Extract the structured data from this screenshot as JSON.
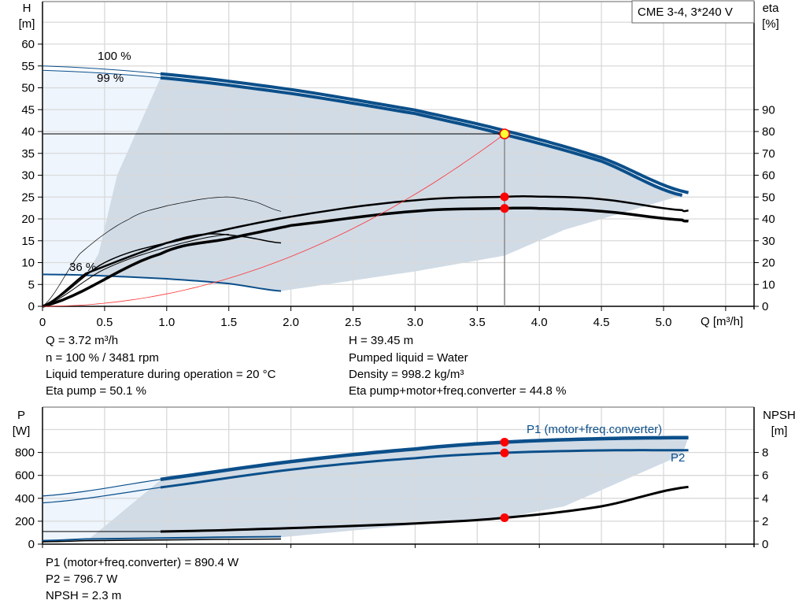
{
  "chart_data": [
    {
      "type": "line",
      "title": "",
      "legend_box": "CME 3-4, 3*240 V",
      "x_axis": {
        "label": "Q [m³/h]",
        "range": [
          0,
          5.7
        ],
        "ticks": [
          "0",
          "0.5",
          "1.0",
          "1.5",
          "2.0",
          "2.5",
          "3.0",
          "3.5",
          "4.0",
          "4.5",
          "5.0"
        ],
        "grid": true
      },
      "y_axis_left": {
        "label_top": "H",
        "label_unit": "[m]",
        "range": [
          0,
          70
        ],
        "ticks": [
          "0",
          "5",
          "10",
          "15",
          "20",
          "25",
          "30",
          "35",
          "40",
          "45",
          "50",
          "55",
          "60"
        ]
      },
      "y_axis_right": {
        "label_top": "eta",
        "label_unit": "[%]",
        "range": [
          0,
          140
        ],
        "ticks": [
          "0",
          "10",
          "20",
          "30",
          "40",
          "50",
          "60",
          "70",
          "80",
          "90"
        ]
      },
      "curve_labels": {
        "max_speed": "100 %",
        "near_max_speed": "99 %",
        "min_speed": "36 %"
      },
      "series": [
        {
          "kind": "H",
          "label": "100 %",
          "x": [
            0,
            0.95,
            2,
            3,
            3.72,
            4.5,
            5.2
          ],
          "y": [
            55,
            53.2,
            49.6,
            44.9,
            40.2,
            34,
            26
          ]
        },
        {
          "kind": "H",
          "label": "99 %",
          "x": [
            0,
            0.95,
            2,
            3,
            3.72,
            4.5,
            5.15
          ],
          "y": [
            54,
            52.3,
            48.7,
            44.1,
            39.3,
            33.2,
            25.4
          ]
        },
        {
          "kind": "H",
          "label": "36 %",
          "x": [
            0,
            0.35,
            1,
            1.5,
            1.92
          ],
          "y": [
            7.3,
            7.1,
            6.3,
            5.2,
            3.5
          ]
        },
        {
          "kind": "eta",
          "label": "Eta pump",
          "x": [
            0,
            0.35,
            1,
            2,
            3,
            3.72,
            4,
            4.5,
            5.15,
            5.2
          ],
          "y": [
            0,
            15,
            29,
            41,
            48.5,
            50.1,
            50.2,
            49,
            44,
            43.8
          ]
        },
        {
          "kind": "eta",
          "label": "Eta pump+motor+freq.converter",
          "x": [
            0,
            0.95,
            1.5,
            2,
            3,
            3.72,
            4,
            4.5,
            5.15,
            5.2
          ],
          "y": [
            0,
            24,
            31,
            37,
            43.5,
            44.8,
            44.8,
            43.5,
            39.5,
            39
          ]
        },
        {
          "kind": "eta",
          "label": "",
          "x": [
            0,
            0.3,
            0.7,
            1,
            1.45,
            1.7,
            1.92
          ],
          "y": [
            0,
            24,
            40,
            46,
            50,
            48,
            43.5
          ]
        },
        {
          "kind": "eta",
          "label": "",
          "x": [
            0,
            0.5,
            1,
            1.3,
            1.6,
            1.92
          ],
          "y": [
            0,
            20,
            29,
            33,
            32,
            29
          ]
        },
        {
          "kind": "eta",
          "label": "",
          "x": [
            0,
            0.5,
            1,
            1.5
          ],
          "y": [
            0,
            17,
            27,
            33
          ]
        },
        {
          "kind": "system",
          "label": "",
          "k": 2.85,
          "x_max": 3.72
        }
      ],
      "operating_point": {
        "Q": 3.72,
        "H": 39.45,
        "eta_pump": 50.1,
        "eta_total": 44.8
      }
    },
    {
      "type": "line",
      "title": "",
      "x_axis": {
        "range": [
          0,
          5.7
        ],
        "grid": true
      },
      "y_axis_left": {
        "label_top": "P",
        "label_unit": "[W]",
        "range": [
          0,
          1200
        ],
        "ticks": [
          "0",
          "200",
          "400",
          "600",
          "800"
        ]
      },
      "y_axis_right": {
        "label_top": "NPSH",
        "label_unit": "[m]",
        "range": [
          0,
          12
        ],
        "ticks": [
          "0",
          "2",
          "4",
          "6",
          "8"
        ]
      },
      "series": [
        {
          "kind": "P",
          "label": "P1 (motor+freq.converter)",
          "x": [
            0,
            0.95,
            2,
            3,
            3.72,
            4.5,
            5.2
          ],
          "y": [
            420,
            565,
            720,
            830,
            890,
            920,
            930
          ]
        },
        {
          "kind": "P",
          "label": "P2",
          "x": [
            0,
            0.95,
            2,
            3,
            3.72,
            4.5,
            5.2
          ],
          "y": [
            360,
            495,
            650,
            750,
            797,
            818,
            820
          ]
        },
        {
          "kind": "P",
          "label": "",
          "x": [
            0,
            0.35,
            1.92
          ],
          "y": [
            30,
            45,
            65
          ]
        },
        {
          "kind": "P",
          "label": "",
          "x": [
            0,
            0.35,
            1.92
          ],
          "y": [
            20,
            30,
            45
          ]
        },
        {
          "kind": "NPSH",
          "label": "",
          "x": [
            0.95,
            2,
            3,
            3.72,
            4.5,
            5.2
          ],
          "y": [
            1.1,
            1.4,
            1.8,
            2.3,
            3.3,
            5.0
          ]
        }
      ],
      "operating_point": {
        "Q": 3.72,
        "P1": 890.4,
        "P2": 796.7,
        "NPSH": 2.3
      }
    }
  ],
  "colors": {
    "curve_blue": "#0b4f8a",
    "shade_dark": "#d0dbe6",
    "shade_light": "#eef5fd",
    "point": "#ff0000",
    "op_point": "#ffff33",
    "grid": "#d9d9d9"
  },
  "info_top": {
    "q": "Q = 3.72 m³/h",
    "n": "n = 100 % / 3481 rpm",
    "temp": "Liquid temperature during operation = 20 °C",
    "eta_pump": "Eta pump = 50.1 %",
    "h": "H = 39.45 m",
    "liquid": "Pumped liquid = Water",
    "density": "Density = 998.2 kg/m³",
    "eta_total": "Eta pump+motor+freq.converter = 44.8 %"
  },
  "info_bottom": {
    "p1": "P1 (motor+freq.converter) = 890.4 W",
    "p2": "P2 = 796.7 W",
    "npsh": "NPSH = 2.3 m"
  }
}
